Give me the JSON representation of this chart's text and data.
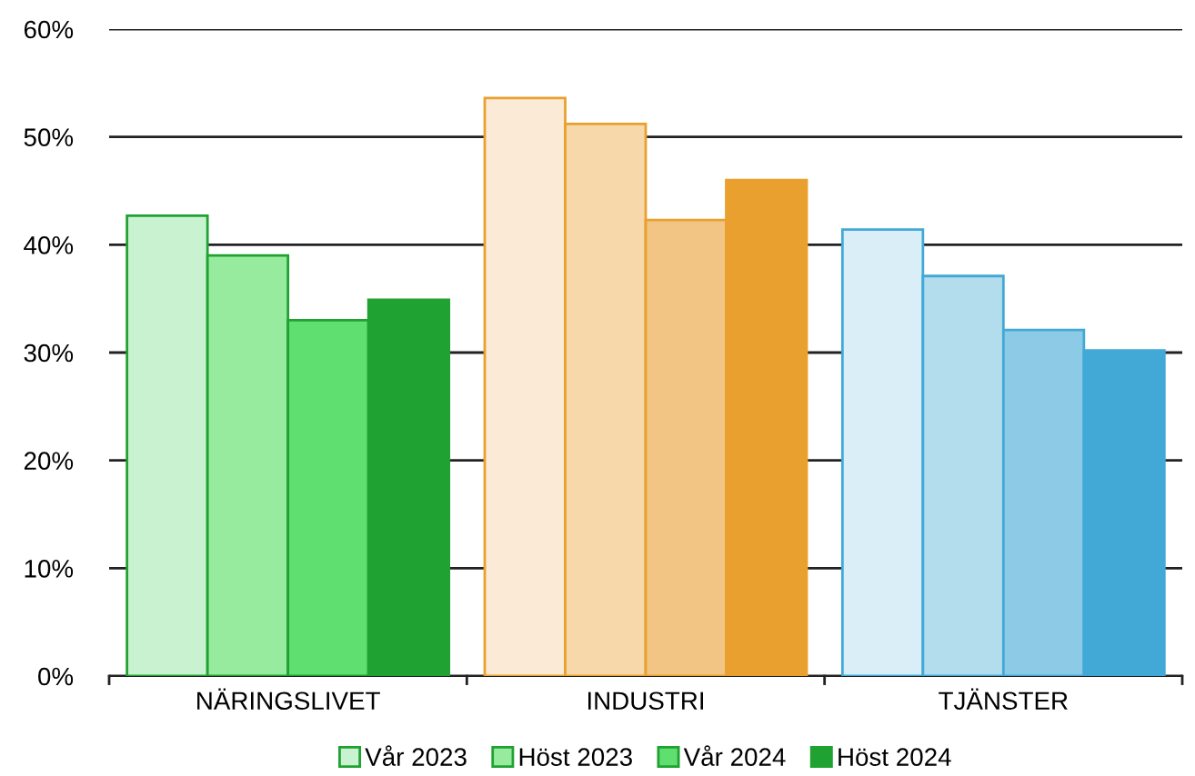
{
  "chart_data": {
    "type": "bar",
    "categories": [
      "NÄRINGSLIVET",
      "INDUSTRI",
      "TJÄNSTER"
    ],
    "series": [
      {
        "name": "Vår 2023",
        "color": "#c9f3d0",
        "colors": [
          "#c9f3d0",
          "#fbead5",
          "#daeef7"
        ],
        "values": [
          42.7,
          53.6,
          41.4
        ]
      },
      {
        "name": "Höst 2023",
        "color": "#96eb9e",
        "colors": [
          "#96eb9e",
          "#f6d8ab",
          "#b3dced"
        ],
        "values": [
          39.0,
          51.2,
          37.1
        ]
      },
      {
        "name": "Vår 2024",
        "color": "#5fdf6f",
        "colors": [
          "#5fdf6f",
          "#f2c585",
          "#8dcae6"
        ],
        "values": [
          33.0,
          42.3,
          32.1
        ]
      },
      {
        "name": "Höst 2024",
        "color": "#20a232",
        "colors": [
          "#20a232",
          "#e9a02e",
          "#42a9d6"
        ],
        "values": [
          34.9,
          46.0,
          30.2
        ]
      }
    ],
    "ylim": [
      0,
      60
    ],
    "yticks": [
      {
        "value": 0,
        "label": "0%"
      },
      {
        "value": 10,
        "label": "10%"
      },
      {
        "value": 20,
        "label": "20%"
      },
      {
        "value": 30,
        "label": "30%"
      },
      {
        "value": 40,
        "label": "40%"
      },
      {
        "value": 50,
        "label": "50%"
      },
      {
        "value": 60,
        "label": "60%"
      }
    ],
    "grid": "y",
    "legend": "bottom"
  }
}
